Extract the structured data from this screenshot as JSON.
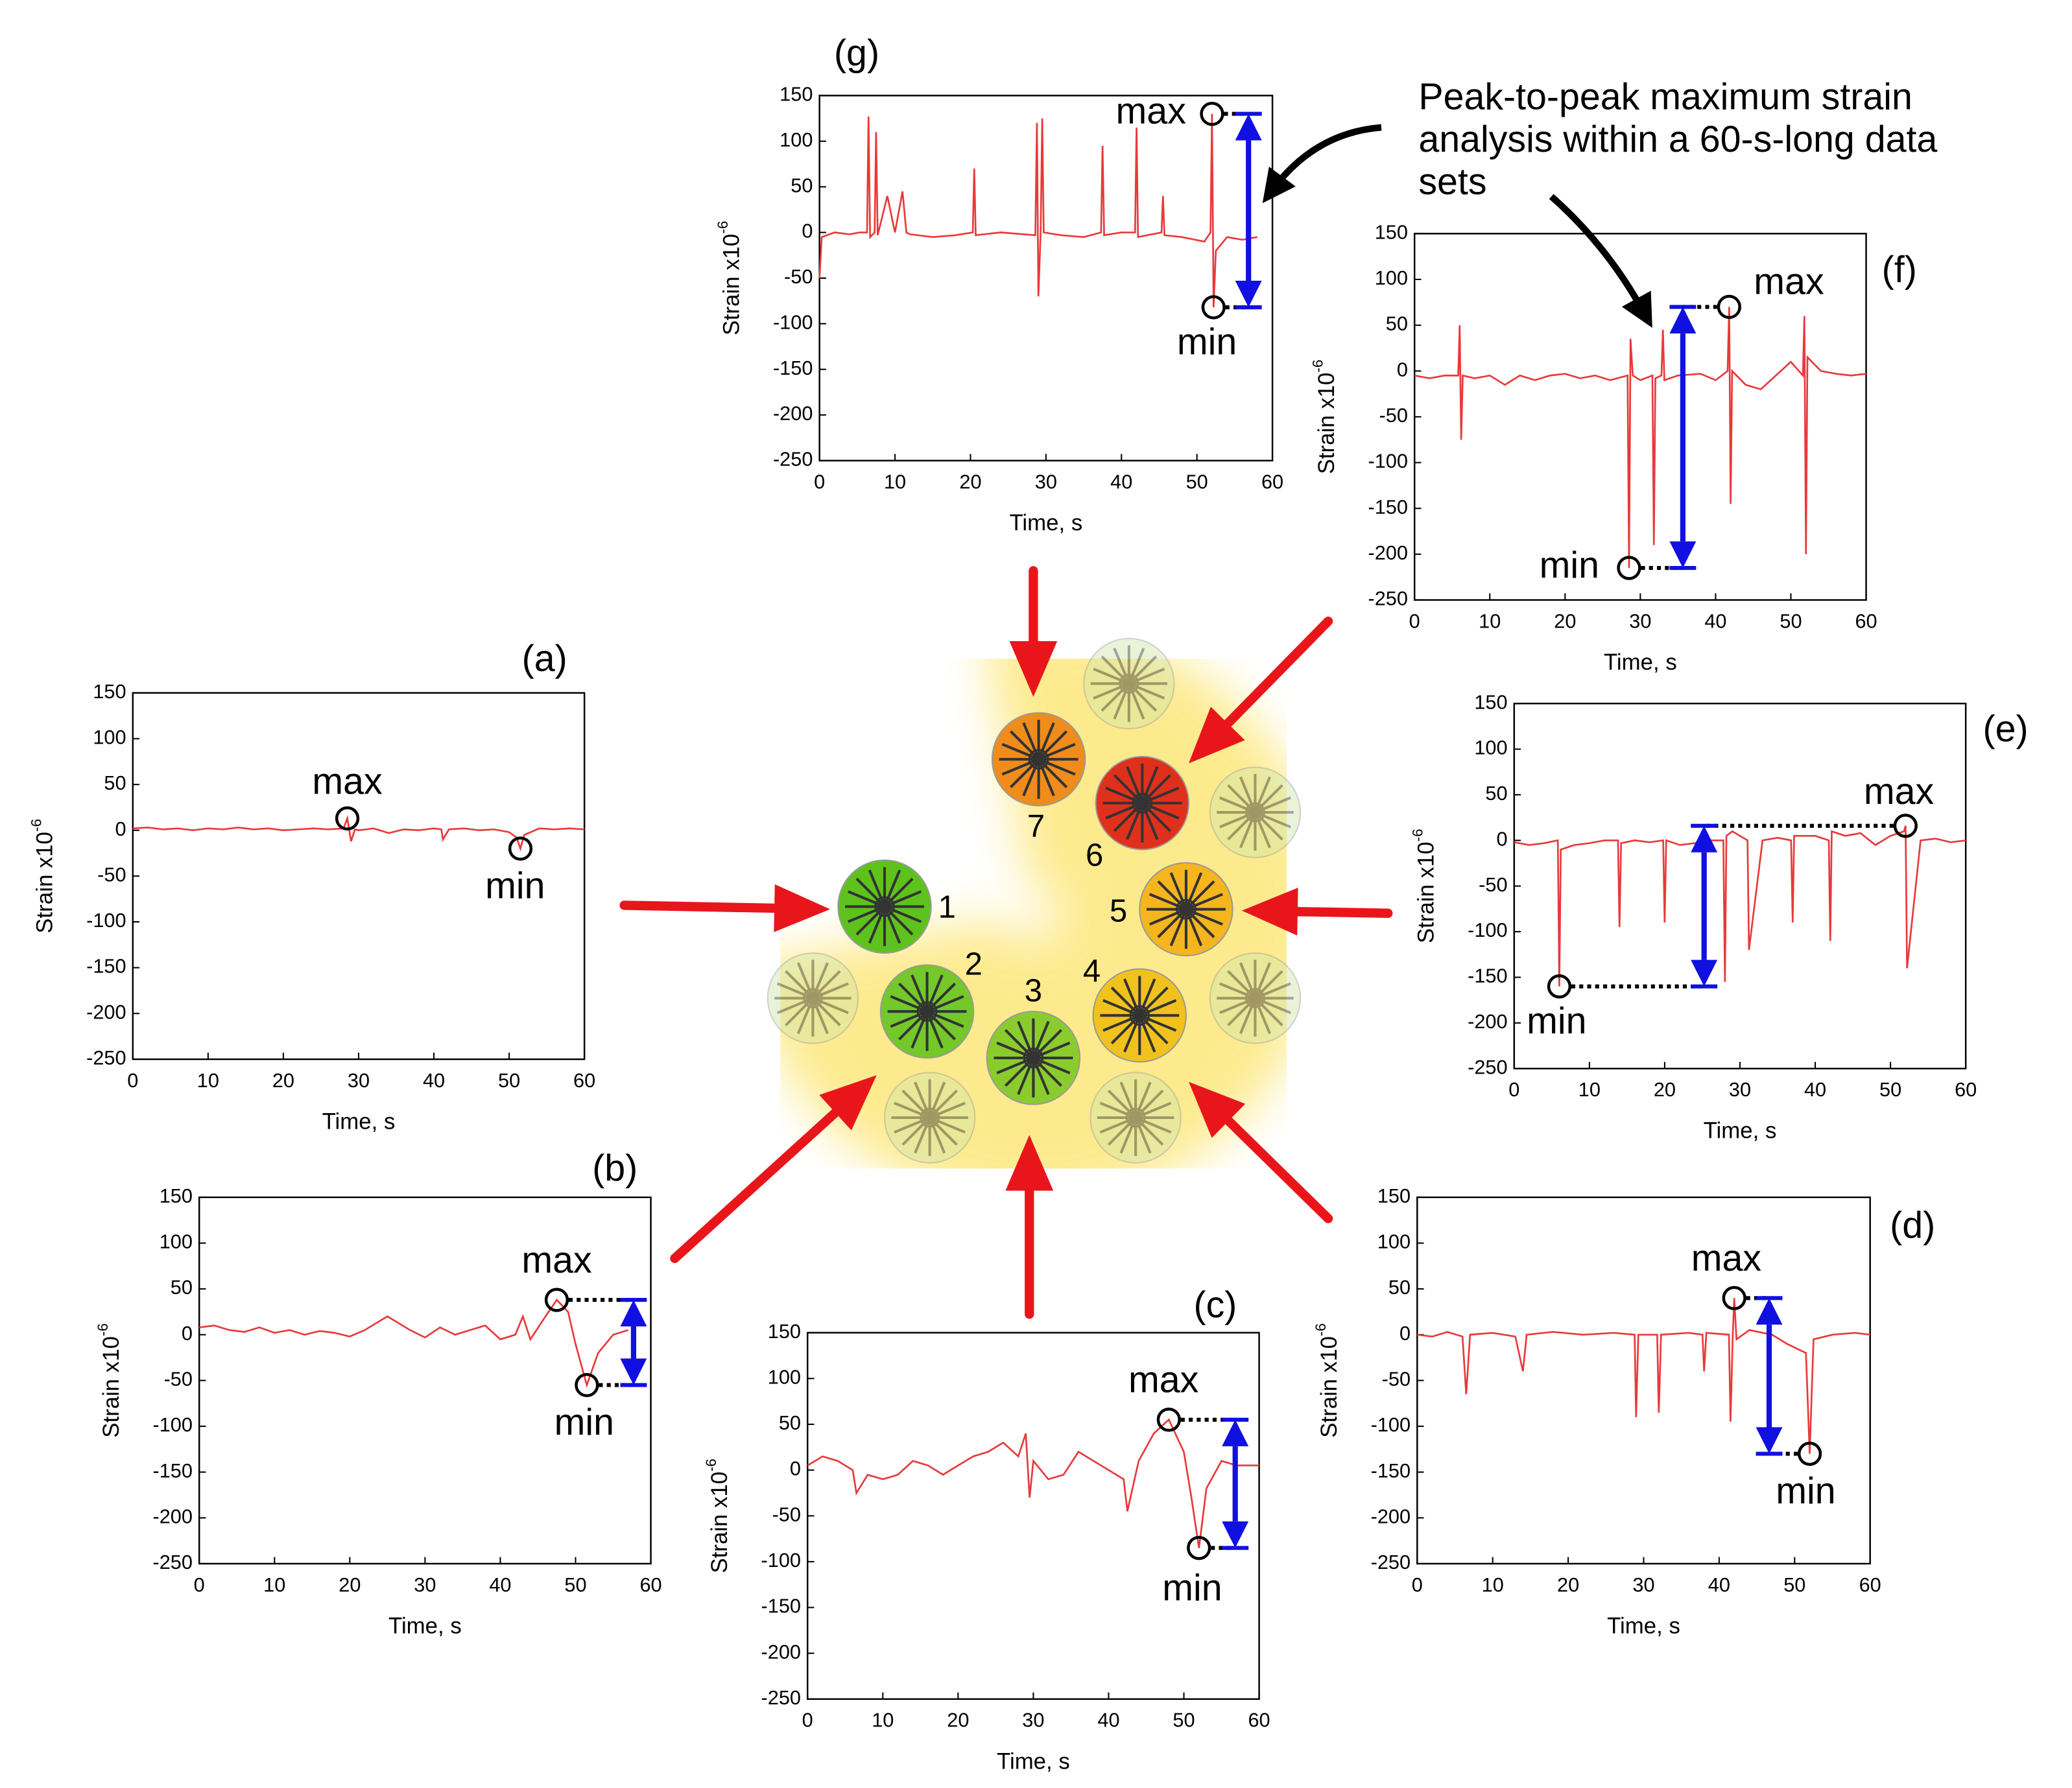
{
  "chart_data": [
    {
      "type": "line",
      "title": "(a)",
      "xlabel": "Time, s",
      "ylabel": "Strain  x10",
      "ylabel_exponent": "-6",
      "color": "#e8393a",
      "xlim": [
        0,
        60
      ],
      "ylim": [
        -250,
        150
      ],
      "xticks": [
        0,
        10,
        20,
        30,
        40,
        50,
        60
      ],
      "yticks": [
        -250,
        -200,
        -150,
        -100,
        -50,
        0,
        50,
        100,
        150
      ],
      "x": [
        0,
        2,
        4,
        6,
        8,
        10,
        12,
        14,
        16,
        18,
        20,
        22,
        24,
        26,
        28,
        28.5,
        29,
        29.5,
        30,
        32,
        34,
        36,
        38,
        40,
        41,
        41.2,
        42,
        44,
        46,
        48,
        50,
        51,
        51.5,
        52,
        54,
        56,
        58,
        60
      ],
      "values": [
        2,
        3,
        1,
        2,
        0,
        2,
        1,
        3,
        1,
        2,
        0,
        1,
        2,
        1,
        2,
        13,
        -12,
        1,
        0,
        2,
        -3,
        1,
        0,
        2,
        1,
        -10,
        1,
        2,
        0,
        1,
        -2,
        -8,
        -20,
        -5,
        2,
        1,
        2,
        1
      ],
      "annotations": [
        {
          "text": "max",
          "x": 28.5,
          "y": 13
        },
        {
          "text": "min",
          "x": 51.5,
          "y": -20
        }
      ]
    },
    {
      "type": "line",
      "title": "(b)",
      "xlabel": "Time, s",
      "ylabel": "Strain  x10",
      "ylabel_exponent": "-6",
      "color": "#e8393a",
      "xlim": [
        0,
        60
      ],
      "ylim": [
        -250,
        150
      ],
      "xticks": [
        0,
        10,
        20,
        30,
        40,
        50,
        60
      ],
      "yticks": [
        -250,
        -200,
        -150,
        -100,
        -50,
        0,
        50,
        100,
        150
      ],
      "x": [
        0,
        2,
        4,
        6,
        8,
        10,
        12,
        14,
        16,
        18,
        20,
        22,
        24,
        25,
        26,
        28,
        30,
        32,
        34,
        36,
        38,
        40,
        42,
        43,
        44,
        46,
        47.5,
        49,
        50,
        51.5,
        53,
        55,
        57
      ],
      "values": [
        8,
        10,
        5,
        3,
        8,
        2,
        5,
        0,
        4,
        2,
        -2,
        5,
        15,
        20,
        15,
        5,
        -3,
        8,
        0,
        5,
        10,
        -5,
        0,
        20,
        -5,
        20,
        38,
        25,
        -10,
        -55,
        -20,
        0,
        5
      ],
      "annotations": [
        {
          "text": "max",
          "x": 47.5,
          "y": 38
        },
        {
          "text": "min",
          "x": 51.5,
          "y": -55
        }
      ]
    },
    {
      "type": "line",
      "title": "(c)",
      "xlabel": "Time, s",
      "ylabel": "Strain  x10",
      "ylabel_exponent": "-6",
      "color": "#e8393a",
      "xlim": [
        0,
        60
      ],
      "ylim": [
        -250,
        150
      ],
      "xticks": [
        0,
        10,
        20,
        30,
        40,
        50,
        60
      ],
      "yticks": [
        -250,
        -200,
        -150,
        -100,
        -50,
        0,
        50,
        100,
        150
      ],
      "x": [
        0,
        2,
        4,
        6,
        6.5,
        8,
        10,
        12,
        14,
        16,
        18,
        20,
        22,
        24,
        26,
        28,
        29,
        29.5,
        30,
        32,
        34,
        36,
        38,
        40,
        42,
        42.5,
        44,
        46,
        48,
        50,
        51,
        52,
        53,
        55,
        57,
        60
      ],
      "values": [
        5,
        15,
        10,
        0,
        -25,
        -5,
        -10,
        -5,
        10,
        5,
        -5,
        5,
        15,
        20,
        30,
        15,
        40,
        -30,
        10,
        -10,
        -5,
        20,
        10,
        0,
        -10,
        -45,
        10,
        40,
        55,
        20,
        -30,
        -85,
        -20,
        10,
        5,
        5
      ],
      "annotations": [
        {
          "text": "max",
          "x": 48,
          "y": 55
        },
        {
          "text": "min",
          "x": 52,
          "y": -85
        }
      ]
    },
    {
      "type": "line",
      "title": "(d)",
      "xlabel": "Time, s",
      "ylabel": "Strain  x10",
      "ylabel_exponent": "-6",
      "color": "#e8393a",
      "xlim": [
        0,
        60
      ],
      "ylim": [
        -250,
        150
      ],
      "xticks": [
        0,
        10,
        20,
        30,
        40,
        50,
        60
      ],
      "yticks": [
        -250,
        -200,
        -150,
        -100,
        -50,
        0,
        50,
        100,
        150
      ],
      "x": [
        0,
        2,
        4,
        6,
        6.5,
        7,
        10,
        13,
        14,
        14.5,
        18,
        22,
        26,
        28.8,
        29,
        29.3,
        31.8,
        32,
        32.3,
        36,
        37.8,
        38,
        38.3,
        41.3,
        41.5,
        41.8,
        42,
        42.3,
        44,
        47,
        49,
        51.5,
        52,
        52.5,
        55,
        58,
        60
      ],
      "values": [
        0,
        -2,
        3,
        -2,
        -65,
        0,
        2,
        -2,
        -40,
        0,
        3,
        0,
        2,
        0,
        -90,
        0,
        0,
        -85,
        0,
        2,
        0,
        -40,
        2,
        0,
        -95,
        0,
        40,
        -5,
        5,
        0,
        -10,
        -20,
        -130,
        -5,
        0,
        2,
        0
      ],
      "annotations": [
        {
          "text": "max",
          "x": 42,
          "y": 40
        },
        {
          "text": "min",
          "x": 52,
          "y": -130
        }
      ]
    },
    {
      "type": "line",
      "title": "(e)",
      "xlabel": "Time, s",
      "ylabel": "Strain  x10",
      "ylabel_exponent": "-6",
      "color": "#e8393a",
      "xlim": [
        0,
        60
      ],
      "ylim": [
        -250,
        150
      ],
      "xticks": [
        0,
        10,
        20,
        30,
        40,
        50,
        60
      ],
      "yticks": [
        -250,
        -200,
        -150,
        -100,
        -50,
        0,
        50,
        100,
        150
      ],
      "x": [
        0,
        2,
        4,
        5.8,
        6,
        6.2,
        8,
        10,
        12,
        13.8,
        14,
        14.2,
        16,
        18,
        19.8,
        20,
        20.2,
        22,
        24,
        26,
        27.8,
        28,
        28.2,
        29,
        31,
        31.2,
        33,
        35,
        36.8,
        37,
        37.2,
        40,
        41.8,
        42,
        42.2,
        44,
        46,
        48,
        50,
        51.8,
        52,
        52.2,
        54,
        56,
        58,
        60
      ],
      "values": [
        -2,
        -5,
        -3,
        0,
        -160,
        -10,
        -5,
        -3,
        0,
        0,
        -95,
        -3,
        0,
        -2,
        0,
        -90,
        0,
        -5,
        -3,
        0,
        0,
        -155,
        5,
        10,
        0,
        -120,
        0,
        3,
        0,
        -90,
        5,
        5,
        0,
        -110,
        10,
        5,
        8,
        -5,
        5,
        10,
        16,
        -140,
        0,
        2,
        -2,
        0
      ],
      "annotations": [
        {
          "text": "max",
          "x": 52,
          "y": 16
        },
        {
          "text": "min",
          "x": 6,
          "y": -160
        }
      ]
    },
    {
      "type": "line",
      "title": "(f)",
      "xlabel": "Time, s",
      "ylabel": "Strain  x10",
      "ylabel_exponent": "-6",
      "color": "#e8393a",
      "xlim": [
        0,
        60
      ],
      "ylim": [
        -250,
        150
      ],
      "xticks": [
        0,
        10,
        20,
        30,
        40,
        50,
        60
      ],
      "yticks": [
        -250,
        -200,
        -150,
        -100,
        -50,
        0,
        50,
        100,
        150
      ],
      "x": [
        0,
        2,
        4,
        5.8,
        6,
        6.2,
        6.4,
        8,
        10,
        12,
        14,
        16,
        18,
        20,
        22,
        24,
        26,
        28.3,
        28.5,
        28.7,
        29,
        30,
        31.6,
        31.8,
        32,
        32.8,
        33,
        33.2,
        35,
        38,
        40,
        41.6,
        41.8,
        42,
        42.2,
        44,
        46,
        48,
        50,
        51.6,
        51.8,
        52,
        52.2,
        54,
        56,
        58,
        60
      ],
      "values": [
        -5,
        -8,
        -5,
        -5,
        50,
        -75,
        -5,
        -8,
        -5,
        -15,
        -5,
        -10,
        -5,
        -3,
        -8,
        -5,
        -10,
        -5,
        -215,
        35,
        -5,
        -10,
        -5,
        -190,
        -8,
        -5,
        45,
        -10,
        -5,
        -3,
        -10,
        0,
        70,
        -145,
        0,
        -15,
        -20,
        -5,
        10,
        -5,
        60,
        -200,
        15,
        0,
        -3,
        -5,
        -3
      ],
      "annotations": [
        {
          "text": "max",
          "x": 41.8,
          "y": 70
        },
        {
          "text": "min",
          "x": 28.5,
          "y": -215
        }
      ]
    },
    {
      "type": "line",
      "title": "(g)",
      "xlabel": "Time, s",
      "ylabel": "Strain  x10",
      "ylabel_exponent": "-6",
      "color": "#e8393a",
      "xlim": [
        0,
        60
      ],
      "ylim": [
        -250,
        150
      ],
      "xticks": [
        0,
        10,
        20,
        30,
        40,
        50,
        60
      ],
      "yticks": [
        -250,
        -200,
        -150,
        -100,
        -50,
        0,
        50,
        100,
        150
      ],
      "x": [
        0,
        0.3,
        2,
        4,
        5.3,
        6.3,
        6.5,
        6.7,
        7.3,
        7.5,
        7.7,
        9,
        10,
        11,
        11.5,
        12,
        15,
        18,
        20.3,
        20.5,
        20.7,
        24,
        28.6,
        28.8,
        29,
        29.3,
        29.5,
        29.7,
        32,
        35,
        37.3,
        37.5,
        37.7,
        40,
        41.8,
        42,
        42.2,
        45.3,
        45.5,
        45.7,
        48,
        51,
        51.8,
        52,
        52.2,
        52.5,
        54,
        56,
        58
      ],
      "values": [
        -50,
        -5,
        0,
        -2,
        0,
        0,
        127,
        -5,
        0,
        110,
        -3,
        40,
        0,
        45,
        0,
        -2,
        -5,
        -3,
        0,
        70,
        -3,
        0,
        -3,
        120,
        -70,
        0,
        125,
        0,
        -3,
        -5,
        0,
        95,
        -3,
        0,
        0,
        115,
        -5,
        0,
        40,
        -3,
        -5,
        -10,
        0,
        130,
        -82,
        -20,
        -5,
        -8,
        -5
      ],
      "annotations": [
        {
          "text": "max",
          "x": 52,
          "y": 130
        },
        {
          "text": "min",
          "x": 52.2,
          "y": -82
        }
      ]
    }
  ],
  "diagram": {
    "labels": [
      "1",
      "2",
      "3",
      "4",
      "5",
      "6",
      "7"
    ],
    "colors": [
      "#5ec21d",
      "#74c82a",
      "#8acc2e",
      "#f1c21d",
      "#f5b51e",
      "#e0301c",
      "#ef8c1c"
    ]
  },
  "callout": {
    "lines": [
      "Peak-to-peak maximum strain",
      "analysis within a 60-s-long data",
      "sets"
    ]
  }
}
